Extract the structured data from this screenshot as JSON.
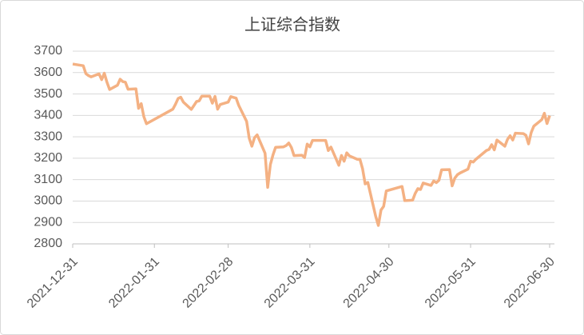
{
  "chart_data": {
    "type": "line",
    "title": "上证综合指数",
    "color": "#f4b183",
    "grid": true,
    "ylim": [
      2800,
      3700
    ],
    "yticks": [
      2800,
      2900,
      3000,
      3100,
      3200,
      3300,
      3400,
      3500,
      3600,
      3700
    ],
    "xlim": [
      "2021-12-31",
      "2022-06-30"
    ],
    "xticks": [
      "2021-12-31",
      "2022-01-31",
      "2022-02-28",
      "2022-03-31",
      "2022-04-30",
      "2022-05-31",
      "2022-06-30"
    ],
    "x": [
      "2021-12-31",
      "2022-01-04",
      "2022-01-05",
      "2022-01-06",
      "2022-01-07",
      "2022-01-10",
      "2022-01-11",
      "2022-01-12",
      "2022-01-13",
      "2022-01-14",
      "2022-01-17",
      "2022-01-18",
      "2022-01-19",
      "2022-01-20",
      "2022-01-21",
      "2022-01-24",
      "2022-01-25",
      "2022-01-26",
      "2022-01-27",
      "2022-01-28",
      "2022-02-07",
      "2022-02-08",
      "2022-02-09",
      "2022-02-10",
      "2022-02-11",
      "2022-02-14",
      "2022-02-15",
      "2022-02-16",
      "2022-02-17",
      "2022-02-18",
      "2022-02-21",
      "2022-02-22",
      "2022-02-23",
      "2022-02-24",
      "2022-02-25",
      "2022-02-28",
      "2022-03-01",
      "2022-03-02",
      "2022-03-03",
      "2022-03-04",
      "2022-03-07",
      "2022-03-08",
      "2022-03-09",
      "2022-03-10",
      "2022-03-11",
      "2022-03-14",
      "2022-03-15",
      "2022-03-16",
      "2022-03-17",
      "2022-03-18",
      "2022-03-21",
      "2022-03-22",
      "2022-03-23",
      "2022-03-24",
      "2022-03-25",
      "2022-03-28",
      "2022-03-29",
      "2022-03-30",
      "2022-03-31",
      "2022-04-01",
      "2022-04-06",
      "2022-04-07",
      "2022-04-08",
      "2022-04-11",
      "2022-04-12",
      "2022-04-13",
      "2022-04-14",
      "2022-04-15",
      "2022-04-18",
      "2022-04-19",
      "2022-04-20",
      "2022-04-21",
      "2022-04-22",
      "2022-04-25",
      "2022-04-26",
      "2022-04-27",
      "2022-04-28",
      "2022-04-29",
      "2022-05-05",
      "2022-05-06",
      "2022-05-09",
      "2022-05-10",
      "2022-05-11",
      "2022-05-12",
      "2022-05-13",
      "2022-05-16",
      "2022-05-17",
      "2022-05-18",
      "2022-05-19",
      "2022-05-20",
      "2022-05-23",
      "2022-05-24",
      "2022-05-25",
      "2022-05-26",
      "2022-05-27",
      "2022-05-30",
      "2022-05-31",
      "2022-06-01",
      "2022-06-02",
      "2022-06-06",
      "2022-06-07",
      "2022-06-08",
      "2022-06-09",
      "2022-06-10",
      "2022-06-13",
      "2022-06-14",
      "2022-06-15",
      "2022-06-16",
      "2022-06-17",
      "2022-06-20",
      "2022-06-21",
      "2022-06-22",
      "2022-06-23",
      "2022-06-24",
      "2022-06-27",
      "2022-06-28",
      "2022-06-29",
      "2022-06-30"
    ],
    "values": [
      3640,
      3632,
      3595,
      3586,
      3580,
      3594,
      3567,
      3597,
      3555,
      3521,
      3541,
      3569,
      3558,
      3555,
      3522,
      3524,
      3433,
      3455,
      3394,
      3361,
      3429,
      3452,
      3479,
      3485,
      3462,
      3428,
      3446,
      3465,
      3468,
      3490,
      3490,
      3457,
      3489,
      3429,
      3451,
      3462,
      3488,
      3484,
      3481,
      3447,
      3372,
      3293,
      3256,
      3296,
      3309,
      3223,
      3064,
      3170,
      3215,
      3251,
      3253,
      3259,
      3271,
      3250,
      3212,
      3214,
      3203,
      3266,
      3253,
      3283,
      3283,
      3236,
      3252,
      3167,
      3213,
      3186,
      3225,
      3211,
      3195,
      3195,
      3151,
      3080,
      3087,
      2928,
      2886,
      2958,
      2975,
      3047,
      3068,
      3002,
      3004,
      3036,
      3058,
      3054,
      3084,
      3073,
      3094,
      3086,
      3097,
      3146,
      3147,
      3071,
      3107,
      3123,
      3131,
      3149,
      3186,
      3182,
      3195,
      3236,
      3241,
      3263,
      3239,
      3285,
      3256,
      3288,
      3305,
      3285,
      3317,
      3315,
      3307,
      3267,
      3320,
      3350,
      3380,
      3410,
      3362,
      3399
    ]
  }
}
